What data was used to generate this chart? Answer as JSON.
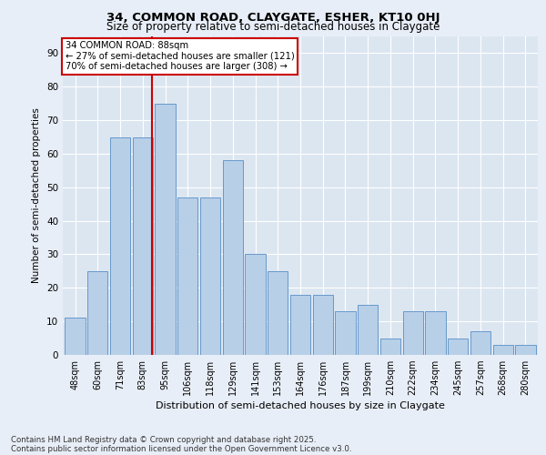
{
  "title1": "34, COMMON ROAD, CLAYGATE, ESHER, KT10 0HJ",
  "title2": "Size of property relative to semi-detached houses in Claygate",
  "xlabel": "Distribution of semi-detached houses by size in Claygate",
  "ylabel": "Number of semi-detached properties",
  "categories": [
    "48sqm",
    "60sqm",
    "71sqm",
    "83sqm",
    "95sqm",
    "106sqm",
    "118sqm",
    "129sqm",
    "141sqm",
    "153sqm",
    "164sqm",
    "176sqm",
    "187sqm",
    "199sqm",
    "210sqm",
    "222sqm",
    "234sqm",
    "245sqm",
    "257sqm",
    "268sqm",
    "280sqm"
  ],
  "values": [
    11,
    25,
    65,
    65,
    75,
    47,
    47,
    58,
    30,
    25,
    18,
    18,
    13,
    15,
    5,
    13,
    13,
    5,
    7,
    3,
    3
  ],
  "bar_color": "#b8cfe8",
  "bar_edge_color": "#6699cc",
  "vline_color": "#cc0000",
  "annotation_title": "34 COMMON ROAD: 88sqm",
  "annotation_line1": "← 27% of semi-detached houses are smaller (121)",
  "annotation_line2": "70% of semi-detached houses are larger (308) →",
  "annotation_box_color": "#ffffff",
  "annotation_box_edge": "#cc0000",
  "background_color": "#e8eef7",
  "plot_bg_color": "#dce6f1",
  "footer1": "Contains HM Land Registry data © Crown copyright and database right 2025.",
  "footer2": "Contains public sector information licensed under the Open Government Licence v3.0.",
  "ylim": [
    0,
    95
  ],
  "yticks": [
    0,
    10,
    20,
    30,
    40,
    50,
    60,
    70,
    80,
    90
  ],
  "vline_x": 3.42,
  "figsize": [
    6.0,
    5.0
  ],
  "dpi": 100
}
